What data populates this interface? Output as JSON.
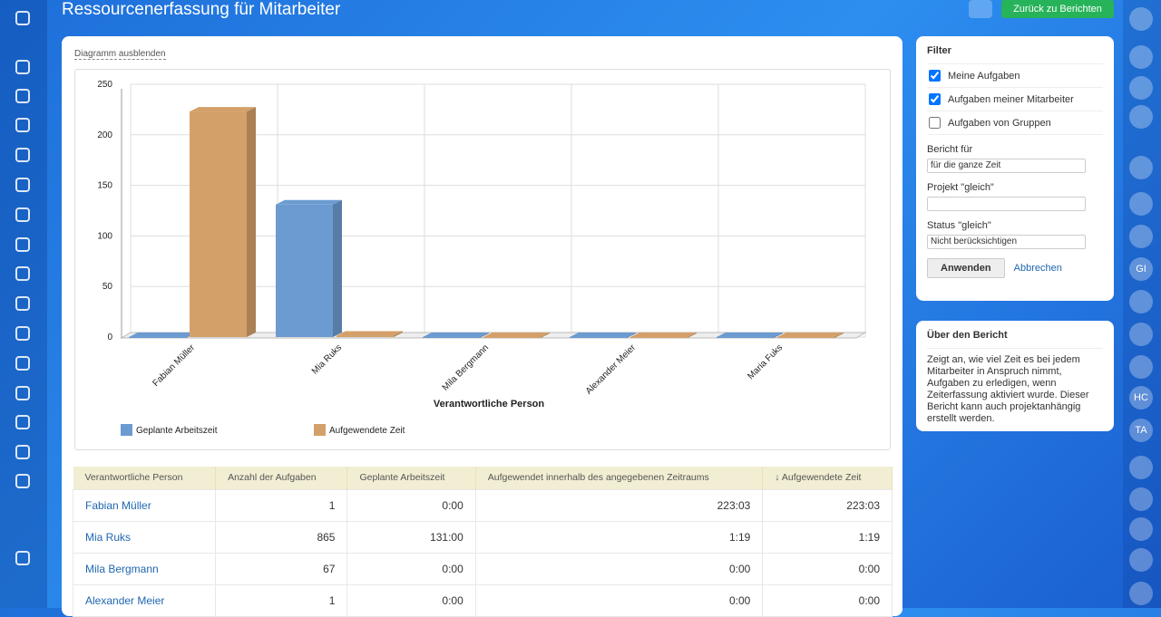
{
  "header": {
    "title": "Ressourcenerfassung für Mitarbeiter",
    "back_button": "Zurück zu Berichten"
  },
  "toggle_chart": "Diagramm ausblenden",
  "chart_data": {
    "type": "bar",
    "categories": [
      "Fabian Müller",
      "Mia Ruks",
      "Mila Bergmann",
      "Alexander Meier",
      "Maria Fuks"
    ],
    "series": [
      {
        "name": "Geplante Arbeitszeit",
        "color": "#6b9bd1",
        "values": [
          0,
          131,
          0,
          0,
          0
        ]
      },
      {
        "name": "Aufgewendete Zeit",
        "color": "#d4a06a",
        "values": [
          223.05,
          1.32,
          0,
          0,
          0
        ]
      }
    ],
    "ylim": [
      0,
      250
    ],
    "yticks": [
      0,
      50,
      100,
      150,
      200,
      250
    ],
    "x_label": "Verantwortliche Person",
    "grid": true
  },
  "table": {
    "columns": [
      "Verantwortliche Person",
      "Anzahl der Aufgaben",
      "Geplante Arbeitszeit",
      "Aufgewendet innerhalb des angegebenen Zeitraums",
      "↓ Aufgewendete Zeit"
    ],
    "rows": [
      [
        "Fabian Müller",
        "1",
        "0:00",
        "223:03",
        "223:03"
      ],
      [
        "Mia Ruks",
        "865",
        "131:00",
        "1:19",
        "1:19"
      ],
      [
        "Mila Bergmann",
        "67",
        "0:00",
        "0:00",
        "0:00"
      ],
      [
        "Alexander Meier",
        "1",
        "0:00",
        "0:00",
        "0:00"
      ]
    ]
  },
  "filter": {
    "title": "Filter",
    "checkboxes": [
      {
        "label": "Meine Aufgaben",
        "checked": true
      },
      {
        "label": "Aufgaben meiner Mitarbeiter",
        "checked": true
      },
      {
        "label": "Aufgaben von Gruppen",
        "checked": false
      }
    ],
    "report_for_label": "Bericht für",
    "report_for_value": "für die ganze Zeit",
    "project_label": "Projekt \"gleich\"",
    "status_label": "Status \"gleich\"",
    "status_value": "Nicht berücksichtigen",
    "apply": "Anwenden",
    "cancel": "Abbrechen"
  },
  "about": {
    "title": "Über den Bericht",
    "text": "Zeigt an, wie viel Zeit es bei jedem Mitarbeiter in Anspruch nimmt, Aufgaben zu erledigen, wenn Zeiterfassung aktiviert wurde. Dieser Bericht kann auch projektanhängig erstellt werden."
  },
  "right_bar": {
    "initials": [
      "GI",
      "HC",
      "TA"
    ]
  }
}
